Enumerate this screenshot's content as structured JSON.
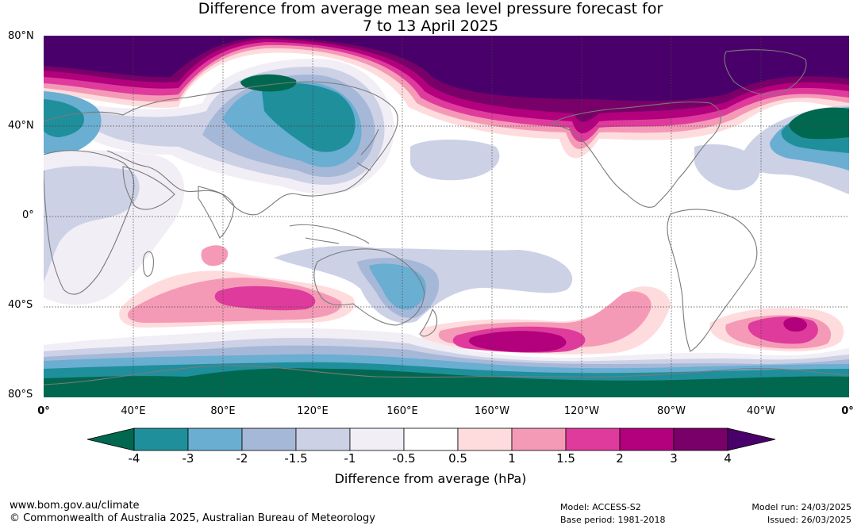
{
  "title_line1": "Difference from average mean sea level pressure forecast for",
  "title_line2": "7 to 13 April 2025",
  "lat_labels": [
    "80°N",
    "40°N",
    "0°",
    "40°S",
    "80°S"
  ],
  "lon_labels": [
    "0°",
    "40°E",
    "80°E",
    "120°E",
    "160°E",
    "160°W",
    "120°W",
    "80°W",
    "40°W",
    "0°"
  ],
  "colorbar": {
    "ticks": [
      "-4",
      "-3",
      "-2",
      "-1.5",
      "-1",
      "-0.5",
      "0.5",
      "1",
      "1.5",
      "2",
      "3",
      "4"
    ],
    "colors": [
      "#00684f",
      "#1f8f9b",
      "#6aaed2",
      "#a6b8d8",
      "#cdd1e6",
      "#f2eef5",
      "#ffffff",
      "#fedcde",
      "#f59ab6",
      "#df3b9c",
      "#b3007d",
      "#780068",
      "#4a006b"
    ],
    "title": "Difference from average (hPa)"
  },
  "footer": {
    "website": "www.bom.gov.au/climate",
    "copyright": "© Commonwealth of Australia 2025, Australian Bureau of Meteorology",
    "model": "Model: ACCESS-S2",
    "base_period": "Base period: 1981-2018",
    "model_run": "Model run: 24/03/2025",
    "issued": "Issued: 26/03/2025"
  }
}
